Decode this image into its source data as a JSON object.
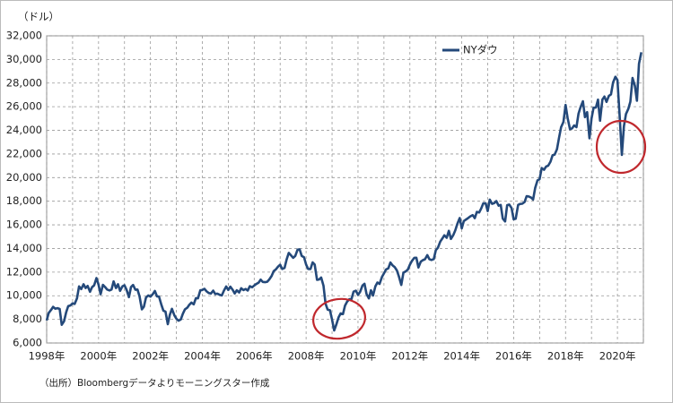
{
  "chart_data": {
    "type": "line",
    "unit_label": "（ドル）",
    "source": "（出所）Bloombergデータよりモーニングスター作成",
    "xlim": [
      1998,
      2021
    ],
    "ylim": [
      6000,
      32000
    ],
    "yticks": [
      {
        "value": 6000,
        "label": "6,000"
      },
      {
        "value": 8000,
        "label": "8,000"
      },
      {
        "value": 10000,
        "label": "10,000"
      },
      {
        "value": 12000,
        "label": "12,000"
      },
      {
        "value": 14000,
        "label": "14,000"
      },
      {
        "value": 16000,
        "label": "16,000"
      },
      {
        "value": 18000,
        "label": "18,000"
      },
      {
        "value": 20000,
        "label": "20,000"
      },
      {
        "value": 22000,
        "label": "22,000"
      },
      {
        "value": 24000,
        "label": "24,000"
      },
      {
        "value": 26000,
        "label": "26,000"
      },
      {
        "value": 28000,
        "label": "28,000"
      },
      {
        "value": 30000,
        "label": "30,000"
      },
      {
        "value": 32000,
        "label": "32,000"
      }
    ],
    "xticks": [
      {
        "value": 1998,
        "label": "1998年"
      },
      {
        "value": 1999,
        "label": null
      },
      {
        "value": 2000,
        "label": "2000年"
      },
      {
        "value": 2001,
        "label": null
      },
      {
        "value": 2002,
        "label": "2002年"
      },
      {
        "value": 2003,
        "label": null
      },
      {
        "value": 2004,
        "label": "2004年"
      },
      {
        "value": 2005,
        "label": null
      },
      {
        "value": 2006,
        "label": "2006年"
      },
      {
        "value": 2007,
        "label": null
      },
      {
        "value": 2008,
        "label": "2008年"
      },
      {
        "value": 2009,
        "label": null
      },
      {
        "value": 2010,
        "label": "2010年"
      },
      {
        "value": 2011,
        "label": null
      },
      {
        "value": 2012,
        "label": "2012年"
      },
      {
        "value": 2013,
        "label": null
      },
      {
        "value": 2014,
        "label": "2014年"
      },
      {
        "value": 2015,
        "label": null
      },
      {
        "value": 2016,
        "label": "2016年"
      },
      {
        "value": 2017,
        "label": null
      },
      {
        "value": 2018,
        "label": "2018年"
      },
      {
        "value": 2019,
        "label": null
      },
      {
        "value": 2020,
        "label": "2020年"
      },
      {
        "value": 2021,
        "label": null
      }
    ],
    "grid": true,
    "legend": "top-right",
    "x": [
      1998,
      1998.08,
      1998.17,
      1998.25,
      1998.33,
      1998.42,
      1998.5,
      1998.58,
      1998.67,
      1998.75,
      1998.83,
      1998.92,
      1999,
      1999.08,
      1999.17,
      1999.25,
      1999.33,
      1999.42,
      1999.5,
      1999.58,
      1999.67,
      1999.75,
      1999.83,
      1999.92,
      2000,
      2000.08,
      2000.17,
      2000.25,
      2000.33,
      2000.42,
      2000.5,
      2000.58,
      2000.67,
      2000.75,
      2000.83,
      2000.92,
      2001,
      2001.08,
      2001.17,
      2001.25,
      2001.33,
      2001.42,
      2001.5,
      2001.58,
      2001.67,
      2001.75,
      2001.83,
      2001.92,
      2002,
      2002.08,
      2002.17,
      2002.25,
      2002.33,
      2002.42,
      2002.5,
      2002.58,
      2002.67,
      2002.75,
      2002.83,
      2002.92,
      2003,
      2003.08,
      2003.17,
      2003.25,
      2003.33,
      2003.42,
      2003.5,
      2003.58,
      2003.67,
      2003.75,
      2003.83,
      2003.92,
      2004,
      2004.08,
      2004.17,
      2004.25,
      2004.33,
      2004.42,
      2004.5,
      2004.58,
      2004.67,
      2004.75,
      2004.83,
      2004.92,
      2005,
      2005.08,
      2005.17,
      2005.25,
      2005.33,
      2005.42,
      2005.5,
      2005.58,
      2005.67,
      2005.75,
      2005.83,
      2005.92,
      2006,
      2006.08,
      2006.17,
      2006.25,
      2006.33,
      2006.42,
      2006.5,
      2006.58,
      2006.67,
      2006.75,
      2006.83,
      2006.92,
      2007,
      2007.08,
      2007.17,
      2007.25,
      2007.33,
      2007.42,
      2007.5,
      2007.58,
      2007.67,
      2007.75,
      2007.83,
      2007.92,
      2008,
      2008.08,
      2008.17,
      2008.25,
      2008.33,
      2008.42,
      2008.5,
      2008.58,
      2008.67,
      2008.75,
      2008.83,
      2008.92,
      2009,
      2009.08,
      2009.17,
      2009.25,
      2009.33,
      2009.42,
      2009.5,
      2009.58,
      2009.67,
      2009.75,
      2009.83,
      2009.92,
      2010,
      2010.08,
      2010.17,
      2010.25,
      2010.33,
      2010.42,
      2010.5,
      2010.58,
      2010.67,
      2010.75,
      2010.83,
      2010.92,
      2011,
      2011.08,
      2011.17,
      2011.25,
      2011.33,
      2011.42,
      2011.5,
      2011.58,
      2011.67,
      2011.75,
      2011.83,
      2011.92,
      2012,
      2012.08,
      2012.17,
      2012.25,
      2012.33,
      2012.42,
      2012.5,
      2012.58,
      2012.67,
      2012.75,
      2012.83,
      2012.92,
      2013,
      2013.08,
      2013.17,
      2013.25,
      2013.33,
      2013.42,
      2013.5,
      2013.58,
      2013.67,
      2013.75,
      2013.83,
      2013.92,
      2014,
      2014.08,
      2014.17,
      2014.25,
      2014.33,
      2014.42,
      2014.5,
      2014.58,
      2014.67,
      2014.75,
      2014.83,
      2014.92,
      2015,
      2015.08,
      2015.17,
      2015.25,
      2015.33,
      2015.42,
      2015.5,
      2015.58,
      2015.67,
      2015.75,
      2015.83,
      2015.92,
      2016,
      2016.08,
      2016.17,
      2016.25,
      2016.33,
      2016.42,
      2016.5,
      2016.58,
      2016.67,
      2016.75,
      2016.83,
      2016.92,
      2017,
      2017.08,
      2017.17,
      2017.25,
      2017.33,
      2017.42,
      2017.5,
      2017.58,
      2017.67,
      2017.75,
      2017.83,
      2017.92,
      2018,
      2018.08,
      2018.17,
      2018.25,
      2018.33,
      2018.42,
      2018.5,
      2018.58,
      2018.67,
      2018.75,
      2018.83,
      2018.92,
      2019,
      2019.08,
      2019.17,
      2019.25,
      2019.33,
      2019.42,
      2019.5,
      2019.58,
      2019.67,
      2019.75,
      2019.83,
      2019.92,
      2020,
      2020.08,
      2020.17,
      2020.25,
      2020.33,
      2020.42,
      2020.5,
      2020.58,
      2020.67,
      2020.75,
      2020.83,
      2020.92
    ],
    "series": [
      {
        "name": "NYダウ",
        "color": "#24497a",
        "values": [
          7907,
          8546,
          8800,
          9063,
          8900,
          8952,
          8883,
          7539,
          7843,
          8592,
          9117,
          9181,
          9359,
          9307,
          9786,
          10789,
          10560,
          10971,
          10655,
          10829,
          10337,
          10729,
          10878,
          11497,
          10941,
          10128,
          10922,
          10734,
          10522,
          10448,
          10522,
          11215,
          10651,
          10971,
          10415,
          10788,
          10887,
          10495,
          9879,
          10735,
          10912,
          10502,
          10523,
          9950,
          8848,
          9075,
          9852,
          10022,
          9920,
          10106,
          10404,
          9946,
          9925,
          9243,
          8737,
          8664,
          7592,
          8397,
          8896,
          8342,
          8054,
          7891,
          7992,
          8480,
          8850,
          8985,
          9234,
          9416,
          9275,
          9801,
          9782,
          10454,
          10488,
          10584,
          10358,
          10226,
          10188,
          10435,
          10140,
          10174,
          10080,
          10027,
          10428,
          10783,
          10490,
          10766,
          10504,
          10193,
          10467,
          10275,
          10641,
          10482,
          10569,
          10440,
          10806,
          10718,
          10865,
          10993,
          11109,
          11367,
          11168,
          11150,
          11186,
          11381,
          11679,
          12081,
          12221,
          12463,
          12622,
          12269,
          12354,
          13063,
          13628,
          13409,
          13212,
          13358,
          13896,
          13930,
          13372,
          13265,
          12650,
          12266,
          12263,
          12820,
          12638,
          11350,
          11378,
          11544,
          10851,
          9325,
          8829,
          8776,
          8001,
          7063,
          7609,
          8168,
          8500,
          8447,
          9172,
          9496,
          9712,
          9713,
          10345,
          10428,
          10067,
          10325,
          10857,
          11009,
          10137,
          9774,
          10466,
          10015,
          10788,
          11118,
          11006,
          11578,
          11892,
          12226,
          12320,
          12811,
          12570,
          12414,
          12143,
          11614,
          10913,
          11955,
          12046,
          12218,
          12633,
          12952,
          13212,
          13214,
          12393,
          12880,
          13009,
          13091,
          13437,
          13096,
          13026,
          13104,
          13861,
          14054,
          14579,
          14840,
          15116,
          14910,
          15500,
          14810,
          15130,
          15546,
          16086,
          16577,
          15699,
          16322,
          16458,
          16581,
          16717,
          16827,
          16563,
          17098,
          17043,
          17391,
          17828,
          17823,
          17165,
          18133,
          17776,
          17841,
          18011,
          17620,
          17690,
          16528,
          16285,
          17664,
          17720,
          17425,
          16466,
          16517,
          17685,
          17774,
          17787,
          17930,
          18432,
          18401,
          18308,
          18142,
          19124,
          19763,
          19864,
          20812,
          20663,
          20941,
          21009,
          21350,
          21891,
          21948,
          22405,
          23377,
          24272,
          24719,
          26149,
          25029,
          24103,
          24163,
          24416,
          24271,
          25415,
          25965,
          26458,
          25116,
          25538,
          23327,
          24999,
          25916,
          25929,
          26593,
          24815,
          26600,
          26864,
          26403,
          26917,
          27046,
          28051,
          28538,
          28256,
          25409,
          21917,
          24346,
          25383,
          25813,
          26428,
          28430,
          27782,
          26502,
          29639,
          30606
        ]
      }
    ]
  }
}
